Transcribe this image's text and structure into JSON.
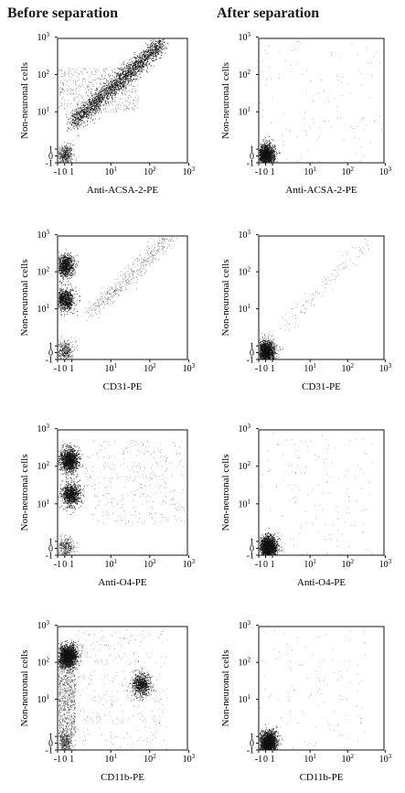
{
  "figure": {
    "column_titles": [
      "Before separation",
      "After separation"
    ]
  },
  "chart_data": [
    {
      "type": "scatter",
      "panel": "before-acsa2",
      "xlabel": "Anti-ACSA-2-PE",
      "ylabel": "Non-neuronal cells",
      "x_scale": "biexponential",
      "y_scale": "biexponential",
      "x_ticks": [
        "-1",
        "0",
        "1",
        "10^1",
        "10^2",
        "10^3"
      ],
      "y_ticks": [
        "-1",
        "0",
        "1",
        "10^1",
        "10^2",
        "10^3"
      ],
      "populations": [
        {
          "x": 0,
          "y": 0.2,
          "density": "medium",
          "count": 450
        },
        {
          "diagonal_from": [
            1,
            5
          ],
          "diagonal_to": [
            200,
            700
          ],
          "density": "high",
          "count": 2200
        },
        {
          "x_range": [
            -1,
            50
          ],
          "y_range": [
            10,
            150
          ],
          "density": "low",
          "count": 500
        }
      ]
    },
    {
      "type": "scatter",
      "panel": "after-acsa2",
      "xlabel": "Anti-ACSA-2-PE",
      "ylabel": "Non-neuronal cells",
      "x_scale": "biexponential",
      "y_scale": "biexponential",
      "x_ticks": [
        "-1",
        "0",
        "1",
        "10^1",
        "10^2",
        "10^3"
      ],
      "y_ticks": [
        "-1",
        "0",
        "1",
        "10^1",
        "10^2",
        "10^3"
      ],
      "populations": [
        {
          "x": 0,
          "y": 0.2,
          "density": "high",
          "count": 1400
        },
        {
          "x_range": [
            -1,
            800
          ],
          "y_range": [
            -1,
            800
          ],
          "density": "sparse",
          "count": 120
        }
      ]
    },
    {
      "type": "scatter",
      "panel": "before-cd31",
      "xlabel": "CD31-PE",
      "ylabel": "Non-neuronal cells",
      "x_scale": "biexponential",
      "y_scale": "biexponential",
      "x_ticks": [
        "-1",
        "0",
        "1",
        "10^1",
        "10^2",
        "10^3"
      ],
      "y_ticks": [
        "-1",
        "0",
        "1",
        "10^1",
        "10^2",
        "10^3"
      ],
      "populations": [
        {
          "x": 0,
          "y": 150,
          "density": "high",
          "count": 900
        },
        {
          "x": 0,
          "y": 18,
          "density": "high",
          "count": 800
        },
        {
          "x": 0,
          "y": 0.3,
          "density": "medium",
          "count": 350
        },
        {
          "diagonal_from": [
            3,
            8
          ],
          "diagonal_to": [
            300,
            800
          ],
          "density": "low",
          "count": 450
        }
      ]
    },
    {
      "type": "scatter",
      "panel": "after-cd31",
      "xlabel": "CD31-PE",
      "ylabel": "Non-neuronal cells",
      "x_scale": "biexponential",
      "y_scale": "biexponential",
      "x_ticks": [
        "-1",
        "0",
        "1",
        "10^1",
        "10^2",
        "10^3"
      ],
      "y_ticks": [
        "-1",
        "0",
        "1",
        "10^1",
        "10^2",
        "10^3"
      ],
      "populations": [
        {
          "x": 0,
          "y": 0.2,
          "density": "high",
          "count": 1400
        },
        {
          "diagonal_from": [
            2,
            3
          ],
          "diagonal_to": [
            300,
            600
          ],
          "density": "sparse",
          "count": 120
        }
      ]
    },
    {
      "type": "scatter",
      "panel": "before-o4",
      "xlabel": "Anti-O4-PE",
      "ylabel": "Non-neuronal cells",
      "x_scale": "biexponential",
      "y_scale": "biexponential",
      "x_ticks": [
        "-1",
        "0",
        "1",
        "10^1",
        "10^2",
        "10^3"
      ],
      "y_ticks": [
        "-1",
        "0",
        "1",
        "10^1",
        "10^2",
        "10^3"
      ],
      "populations": [
        {
          "x": 0.6,
          "y": 150,
          "density": "high",
          "count": 1300
        },
        {
          "x": 0.8,
          "y": 18,
          "density": "high",
          "count": 900
        },
        {
          "x": 0.2,
          "y": 0.2,
          "density": "medium",
          "count": 300
        },
        {
          "x_range": [
            2,
            800
          ],
          "y_range": [
            3,
            500
          ],
          "density": "sparse",
          "count": 350
        }
      ]
    },
    {
      "type": "scatter",
      "panel": "after-o4",
      "xlabel": "Anti-O4-PE",
      "ylabel": "Non-neuronal cells",
      "x_scale": "biexponential",
      "y_scale": "biexponential",
      "x_ticks": [
        "-1",
        "0",
        "1",
        "10^1",
        "10^2",
        "10^3"
      ],
      "y_ticks": [
        "-1",
        "0",
        "1",
        "10^1",
        "10^2",
        "10^3"
      ],
      "populations": [
        {
          "x": 0.3,
          "y": 0.2,
          "density": "high",
          "count": 1800
        },
        {
          "x_range": [
            -1,
            500
          ],
          "y_range": [
            -1,
            800
          ],
          "density": "sparse",
          "count": 140
        }
      ]
    },
    {
      "type": "scatter",
      "panel": "before-cd11b",
      "xlabel": "CD11b-PE",
      "ylabel": "Non-neuronal cells",
      "x_scale": "biexponential",
      "y_scale": "biexponential",
      "x_ticks": [
        "-1",
        "0",
        "1",
        "10^1",
        "10^2",
        "10^3"
      ],
      "y_ticks": [
        "-1",
        "0",
        "1",
        "10^1",
        "10^2",
        "10^3"
      ],
      "populations": [
        {
          "x": 0.4,
          "y": 150,
          "density": "high",
          "count": 1800
        },
        {
          "x_range": [
            -1,
            1.2
          ],
          "y_range": [
            1,
            100
          ],
          "density": "medium",
          "count": 700
        },
        {
          "x": 0,
          "y": 0.1,
          "density": "medium",
          "count": 350
        },
        {
          "x": 60,
          "y": 25,
          "density": "high",
          "count": 700
        },
        {
          "x_range": [
            1,
            300
          ],
          "y_range": [
            -1,
            800
          ],
          "density": "sparse",
          "count": 350
        }
      ]
    },
    {
      "type": "scatter",
      "panel": "after-cd11b",
      "xlabel": "CD11b-PE",
      "ylabel": "Non-neuronal cells",
      "x_scale": "biexponential",
      "y_scale": "biexponential",
      "x_ticks": [
        "-1",
        "0",
        "1",
        "10^1",
        "10^2",
        "10^3"
      ],
      "y_ticks": [
        "-1",
        "0",
        "1",
        "10^1",
        "10^2",
        "10^3"
      ],
      "populations": [
        {
          "x": 0.3,
          "y": 0.1,
          "density": "high",
          "count": 1800
        },
        {
          "x_range": [
            -1,
            300
          ],
          "y_range": [
            -1,
            800
          ],
          "density": "sparse",
          "count": 120
        }
      ]
    }
  ]
}
